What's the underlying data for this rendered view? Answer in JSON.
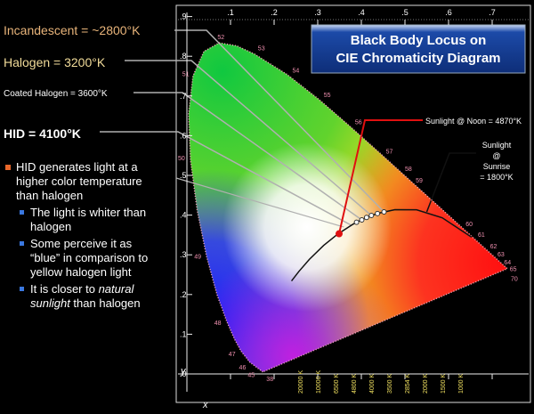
{
  "left_panel": {
    "light_sources": [
      "Incandescent = ~2800°K",
      "Halogen = 3200°K",
      "Coated Halogen = 3600°K",
      "HID = 4100°K"
    ],
    "bullet": "HID generates light at a higher color temperature than halogen",
    "sub_bullets": [
      "The light is whiter than halogen",
      "Some perceive it as “blue” in comparison to yellow halogen light"
    ],
    "last_sub_bullet": {
      "before": "It is closer to ",
      "emphasis": "natural sunlight",
      "after": " than halogen"
    }
  },
  "diagram": {
    "title": [
      "Black Body Locus on",
      "CIE Chromaticity Diagram"
    ],
    "x_ticks": [
      ".1",
      ".2",
      ".3",
      ".4",
      ".5",
      ".6",
      ".7"
    ],
    "y_ticks": [
      ".9",
      ".8",
      ".7",
      ".6",
      ".5",
      ".4",
      ".3",
      ".2",
      ".1",
      ".0"
    ],
    "x_axis_label": "x",
    "y_axis_label": "y",
    "wavelength_labels": [
      "52",
      "53",
      "54",
      "55",
      "56",
      "57",
      "58",
      "59",
      "60",
      "61",
      "62",
      "63",
      "64",
      "65",
      "70",
      "51",
      "50",
      "49",
      "48",
      "47",
      "46",
      "45",
      "38"
    ],
    "temperature_labels": [
      "20000 K",
      "10000 K",
      "6500 K",
      "4800 K",
      "4000 K",
      "3500 K",
      "2854 K",
      "2000 K",
      "1500 K",
      "1000 K"
    ],
    "noon_annotation": "Sunlight @ Noon = 4870°K",
    "sunrise_annotation": [
      "Sunlight",
      "@",
      "Sunrise",
      "= 1800°K"
    ]
  }
}
